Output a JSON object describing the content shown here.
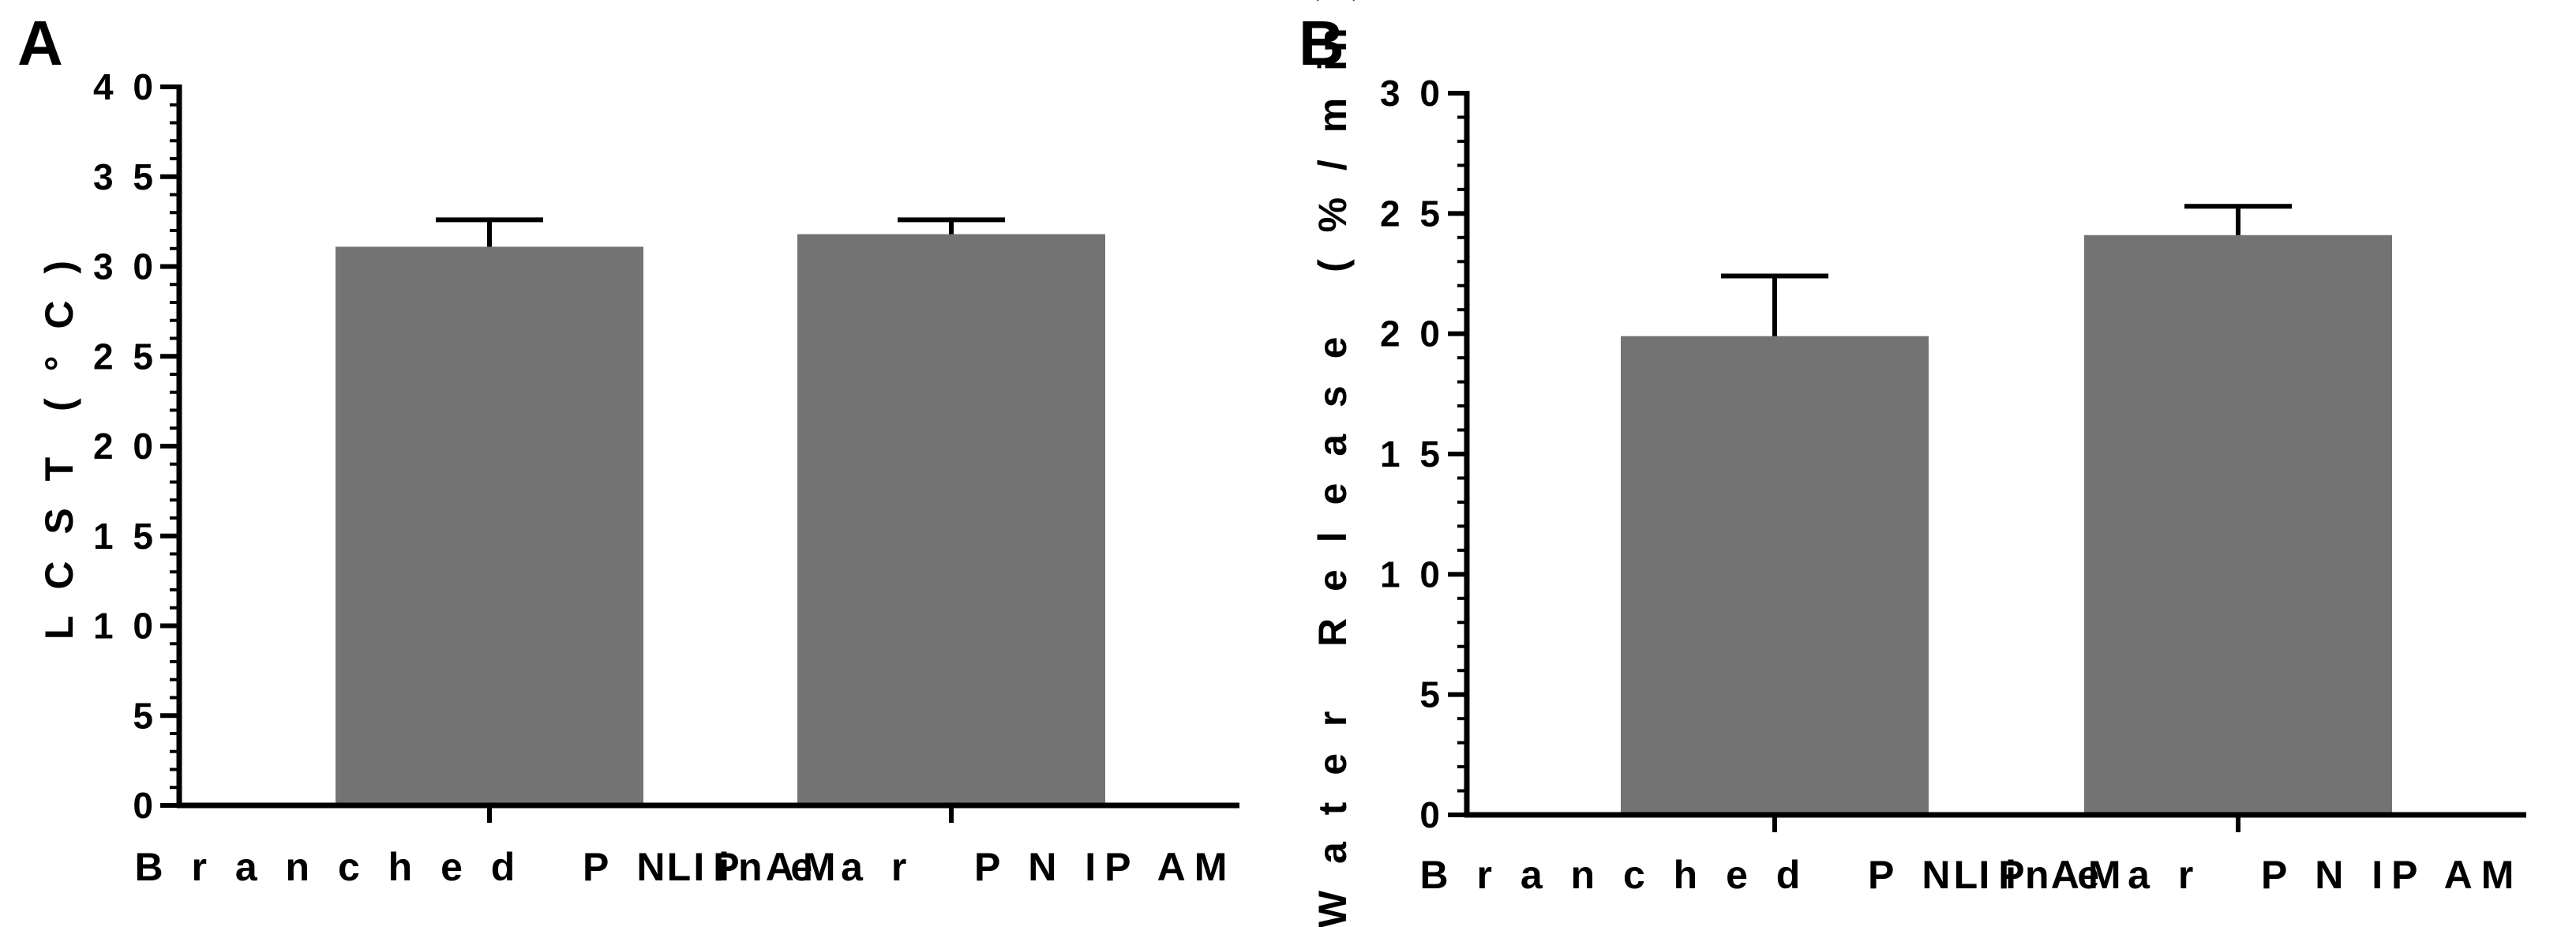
{
  "chart_data": [
    {
      "type": "bar",
      "panel_label": "A",
      "categories": [
        "Branched PNIPAM",
        "Linear PNIPAM"
      ],
      "category_labels": [
        "B r a n c h e d   P N IP AM",
        "L in e a r   P N IP AM"
      ],
      "values": [
        31.1,
        31.8
      ],
      "error": [
        1.5,
        0.8
      ],
      "xlabel": "",
      "ylabel": "L C S T  ( ° C )",
      "ylim": [
        0,
        40
      ],
      "yticks": [
        0,
        5,
        10,
        15,
        20,
        25,
        30,
        35,
        40
      ],
      "ytick_labels": [
        "0",
        "5",
        "1 0",
        "1 5",
        "2 0",
        "2 5",
        "3 0",
        "3 5",
        "4 0"
      ],
      "bar_color": "#737373",
      "grid": false
    },
    {
      "type": "bar",
      "panel_label": "B",
      "categories": [
        "Branched PNIPAM",
        "Linear PNIPAM"
      ],
      "category_labels": [
        "B r a n c h e d   P N IP AM",
        "L in e a r   P N IP AM"
      ],
      "values": [
        19.9,
        24.1
      ],
      "error": [
        2.5,
        1.2
      ],
      "xlabel": "",
      "ylabel": "W a t e r   R e l e a s e   ( % / m in )",
      "ylim": [
        0,
        30
      ],
      "yticks": [
        0,
        5,
        10,
        15,
        20,
        25,
        30
      ],
      "ytick_labels": [
        "0",
        "5",
        "1 0",
        "1 5",
        "2 0",
        "2 5",
        "3 0"
      ],
      "bar_color": "#737373",
      "grid": false
    }
  ]
}
